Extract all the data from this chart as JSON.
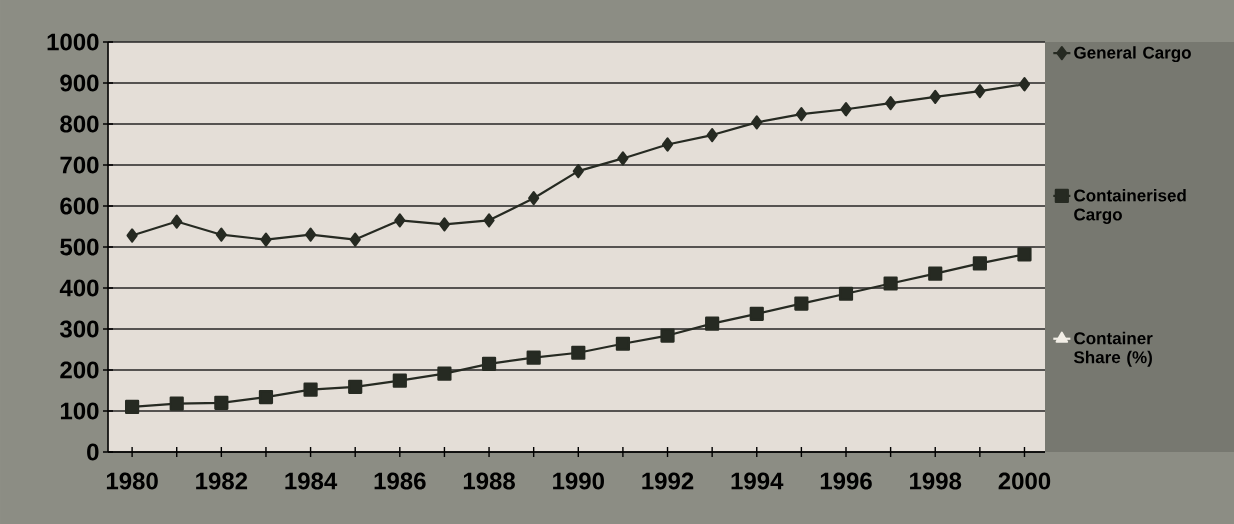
{
  "chart_data": {
    "type": "line",
    "x": [
      1980,
      1981,
      1982,
      1983,
      1984,
      1985,
      1986,
      1987,
      1988,
      1989,
      1990,
      1991,
      1992,
      1993,
      1994,
      1995,
      1996,
      1997,
      1998,
      1999,
      2000
    ],
    "series": [
      {
        "name": "General Cargo",
        "color": "#262a22",
        "marker": "diamond",
        "values": [
          528,
          562,
          530,
          518,
          530,
          518,
          565,
          555,
          565,
          619,
          685,
          716,
          750,
          773,
          804,
          824,
          836,
          851,
          866,
          880,
          897
        ]
      },
      {
        "name": "Containerised Cargo",
        "color": "#262a22",
        "marker": "square",
        "values": [
          110,
          118,
          120,
          134,
          152,
          159,
          174,
          191,
          215,
          230,
          242,
          264,
          284,
          313,
          337,
          362,
          386,
          411,
          435,
          460,
          482
        ]
      },
      {
        "name": "Container Share (%)",
        "color": "#f2eee6",
        "marker": "triangle",
        "values": [
          null,
          null,
          null,
          null,
          null,
          null,
          null,
          null,
          null,
          null,
          null,
          null,
          null,
          null,
          null,
          null,
          null,
          null,
          null,
          null,
          null
        ]
      }
    ],
    "xlim": [
      1979.46,
      2000.46
    ],
    "xticks": [
      1980,
      {
        "value": 1981,
        "label": null
      },
      1982,
      {
        "value": 1983,
        "label": null
      },
      1984,
      {
        "value": 1985,
        "label": null
      },
      1986,
      {
        "value": 1987,
        "label": null
      },
      1988,
      {
        "value": 1989,
        "label": null
      },
      1990,
      {
        "value": 1991,
        "label": null
      },
      1992,
      {
        "value": 1993,
        "label": null
      },
      1994,
      {
        "value": 1995,
        "label": null
      },
      1996,
      {
        "value": 1997,
        "label": null
      },
      1998,
      {
        "value": 1999,
        "label": null
      },
      2000
    ],
    "ylim": [
      0,
      1000
    ],
    "yticks": [
      0,
      100,
      200,
      300,
      400,
      500,
      600,
      700,
      800,
      900,
      1000
    ],
    "grid": "y",
    "legend": "right",
    "line_style": "solid"
  }
}
